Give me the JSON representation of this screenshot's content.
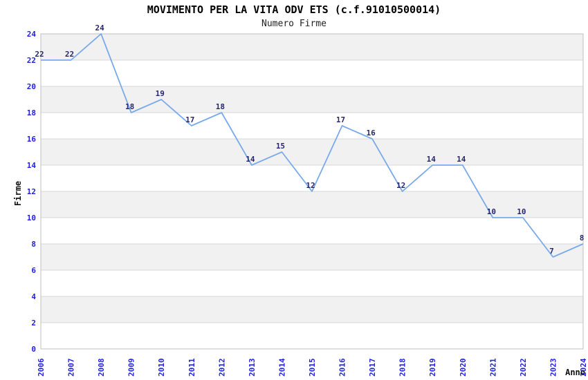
{
  "title": "MOVIMENTO PER LA VITA ODV ETS (c.f.91010500014)",
  "subtitle": "Numero Firme",
  "chart_data": {
    "type": "line",
    "x": [
      "2006",
      "2007",
      "2008",
      "2009",
      "2010",
      "2011",
      "2012",
      "2013",
      "2014",
      "2015",
      "2016",
      "2017",
      "2018",
      "2019",
      "2020",
      "2021",
      "2022",
      "2023",
      "2024"
    ],
    "series": [
      {
        "name": "Numero Firme",
        "values": [
          22,
          22,
          24,
          18,
          19,
          17,
          18,
          14,
          15,
          12,
          17,
          16,
          12,
          14,
          14,
          10,
          10,
          7,
          8
        ]
      }
    ],
    "xlabel": "Anno",
    "ylabel": "Firme",
    "ylim": [
      0,
      24
    ],
    "y_ticks": [
      0,
      2,
      4,
      6,
      8,
      10,
      12,
      14,
      16,
      18,
      20,
      22,
      24
    ],
    "grid": true,
    "legend_position": "none",
    "point_labels": true,
    "colors": {
      "line": "#79aae9",
      "point_label": "#272770",
      "tick_label": "#2222dd",
      "band": "#f1f1f1",
      "grid_line": "#d8d8d8",
      "plot_border": "#bfbfbf",
      "title": "#000000",
      "subtitle": "#222222",
      "axis_title": "#111111"
    }
  }
}
